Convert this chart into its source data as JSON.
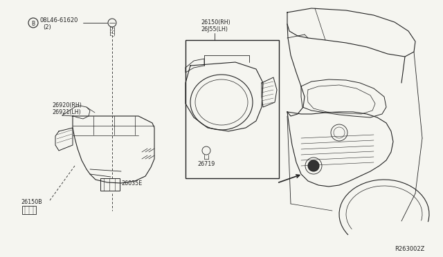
{
  "background_color": "#f5f5f0",
  "line_color": "#1a1a1a",
  "fig_width": 6.4,
  "fig_height": 3.72,
  "dpi": 100,
  "labels": {
    "part1_label": "08L46-61620",
    "part1_sub": "(2)",
    "part1_circle": "B",
    "part2a": "26920(RH)",
    "part2b": "26921(LH)",
    "part3a": "26150(RH)",
    "part3b": "26J55(LH)",
    "part4": "26719",
    "part5": "26150B",
    "part6": "26035E",
    "ref": "R263002Z"
  },
  "colors": {
    "bg": "#f5f5f0",
    "line": "#222222",
    "fill_light": "#e8e8e4"
  }
}
